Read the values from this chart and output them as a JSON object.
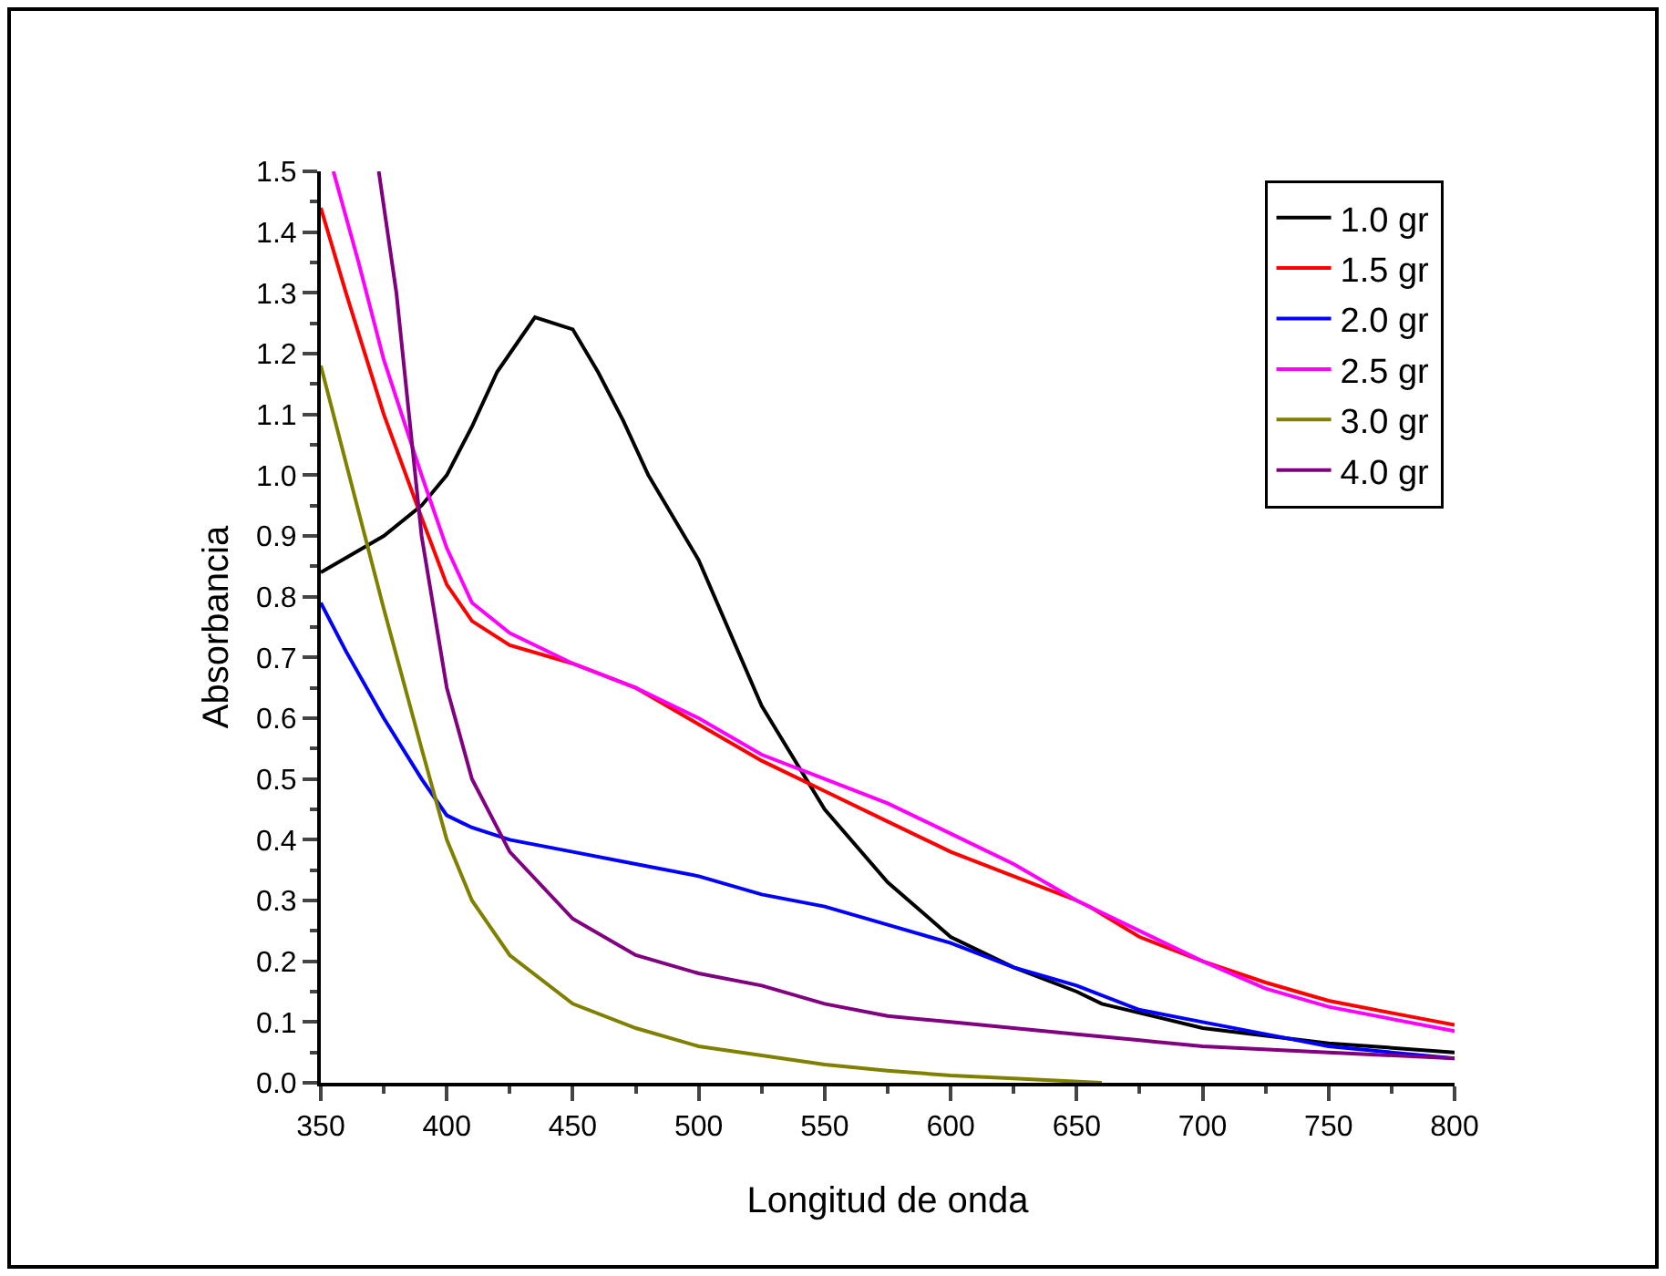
{
  "chart_data": {
    "type": "line",
    "xlabel": "Longitud de onda",
    "ylabel": "Absorbancia",
    "xlim": [
      350,
      800
    ],
    "ylim": [
      0,
      1.5
    ],
    "xticks": [
      350,
      400,
      450,
      500,
      550,
      600,
      650,
      700,
      750,
      800
    ],
    "yticks": [
      {
        "value": 0,
        "label": "0.0"
      },
      0.1,
      0.2,
      0.3,
      0.4,
      0.5,
      0.6,
      0.7,
      0.8,
      0.9,
      {
        "value": 1,
        "label": "1.0"
      },
      1.1,
      1.2,
      1.3,
      1.4,
      1.5
    ],
    "grid": false,
    "legend": "top right",
    "marker": "none",
    "line_style": "solid",
    "series": [
      {
        "name": "1.0 gr",
        "color": "#000000",
        "x": [
          350,
          375,
          390,
          400,
          410,
          420,
          430,
          435,
          450,
          460,
          470,
          480,
          500,
          525,
          550,
          575,
          600,
          625,
          650,
          660,
          700,
          750,
          800
        ],
        "values": [
          0.84,
          0.9,
          0.95,
          1.0,
          1.08,
          1.17,
          1.23,
          1.26,
          1.24,
          1.17,
          1.09,
          1.0,
          0.86,
          0.62,
          0.45,
          0.33,
          0.24,
          0.19,
          0.15,
          0.13,
          0.09,
          0.065,
          0.05
        ]
      },
      {
        "name": "1.5 gr",
        "color": "#ff0000",
        "x": [
          350,
          360,
          375,
          390,
          400,
          410,
          425,
          450,
          475,
          500,
          525,
          550,
          575,
          600,
          625,
          650,
          655,
          675,
          700,
          725,
          750,
          775,
          800
        ],
        "values": [
          1.44,
          1.3,
          1.1,
          0.93,
          0.82,
          0.76,
          0.72,
          0.69,
          0.65,
          0.59,
          0.53,
          0.48,
          0.43,
          0.38,
          0.34,
          0.3,
          0.29,
          0.24,
          0.2,
          0.165,
          0.135,
          0.115,
          0.095
        ]
      },
      {
        "name": "2.0 gr",
        "color": "#0000ff",
        "x": [
          350,
          360,
          375,
          390,
          400,
          410,
          425,
          450,
          475,
          500,
          525,
          550,
          575,
          600,
          625,
          650,
          675,
          700,
          725,
          750,
          800
        ],
        "values": [
          0.79,
          0.71,
          0.6,
          0.5,
          0.44,
          0.42,
          0.4,
          0.38,
          0.36,
          0.34,
          0.31,
          0.29,
          0.26,
          0.23,
          0.19,
          0.16,
          0.12,
          0.1,
          0.08,
          0.06,
          0.04
        ]
      },
      {
        "name": "2.5 gr",
        "color": "#ff00ff",
        "x": [
          355,
          365,
          375,
          390,
          400,
          410,
          425,
          450,
          475,
          500,
          525,
          550,
          575,
          600,
          625,
          650,
          675,
          700,
          725,
          750,
          800
        ],
        "values": [
          1.5,
          1.35,
          1.19,
          1.0,
          0.88,
          0.79,
          0.74,
          0.69,
          0.65,
          0.6,
          0.54,
          0.5,
          0.46,
          0.41,
          0.36,
          0.3,
          0.25,
          0.2,
          0.155,
          0.125,
          0.085
        ]
      },
      {
        "name": "3.0 gr",
        "color": "#808000",
        "x": [
          350,
          360,
          375,
          390,
          400,
          410,
          425,
          450,
          475,
          500,
          525,
          550,
          575,
          600,
          625,
          660
        ],
        "values": [
          1.18,
          1.02,
          0.78,
          0.55,
          0.4,
          0.3,
          0.21,
          0.13,
          0.09,
          0.06,
          0.045,
          0.03,
          0.02,
          0.012,
          0.007,
          0.0
        ]
      },
      {
        "name": "4.0 gr",
        "color": "#800080",
        "x": [
          373,
          380,
          385,
          390,
          400,
          410,
          425,
          450,
          475,
          500,
          525,
          550,
          575,
          600,
          625,
          650,
          675,
          700,
          750,
          800
        ],
        "values": [
          1.5,
          1.3,
          1.1,
          0.9,
          0.65,
          0.5,
          0.38,
          0.27,
          0.21,
          0.18,
          0.16,
          0.13,
          0.11,
          0.1,
          0.09,
          0.08,
          0.07,
          0.06,
          0.05,
          0.04
        ]
      }
    ]
  }
}
